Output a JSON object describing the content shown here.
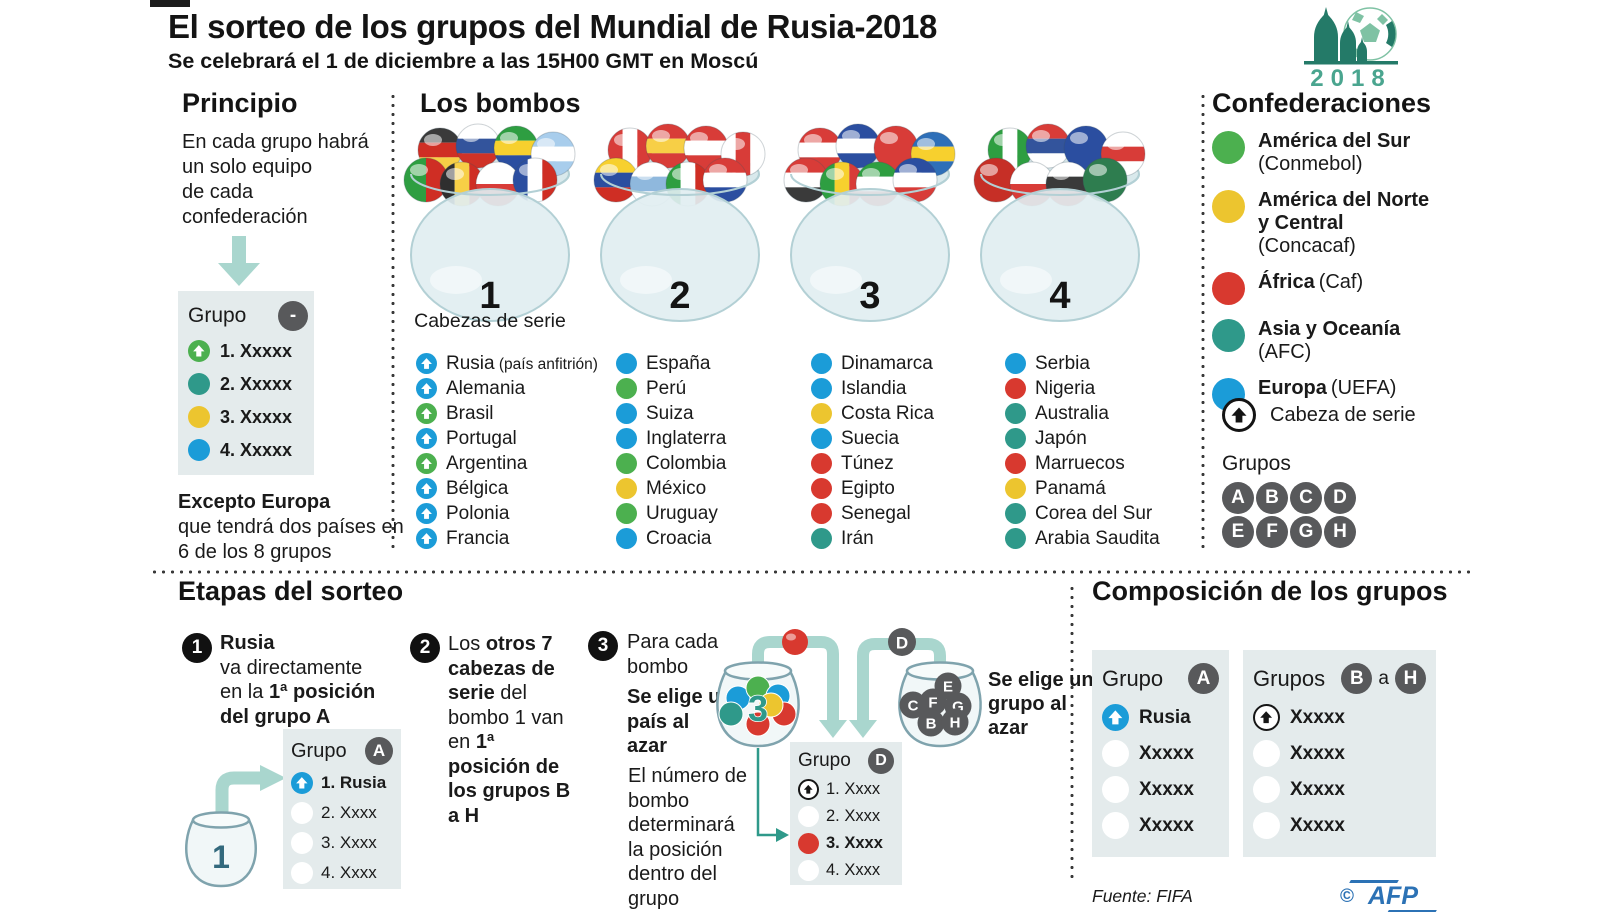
{
  "colors": {
    "uefa": "#1b9cd8",
    "conmebol": "#4cb04f",
    "concacaf": "#ecc52f",
    "caf": "#d8392f",
    "afc": "#2f998a",
    "white": "#ffffff",
    "dark": "#58595b",
    "arrow": "#a9d6ce",
    "box": "#e4ebec",
    "logo": "#247a68",
    "logo_light": "#7fc2a4",
    "logo_text": "#4aa58f",
    "afp": "#2c72b5"
  },
  "header": {
    "title": "El sorteo de los grupos del Mundial de Rusia-2018",
    "subtitle": "Se celebrará el 1 de diciembre a las 15H00 GMT en Moscú",
    "logo_year": "2018"
  },
  "principio": {
    "heading": "Principio",
    "body_lines": [
      "En cada grupo habrá",
      "un solo equipo",
      "de cada",
      "confederación"
    ],
    "box": {
      "label": "Grupo",
      "badge": "-",
      "items": [
        {
          "text": "1. Xxxxx",
          "bullet": "conmebol",
          "arrow": true,
          "bold": true
        },
        {
          "text": "2. Xxxxx",
          "bullet": "afc",
          "bold": true
        },
        {
          "text": "3. Xxxxx",
          "bullet": "concacaf",
          "bold": true
        },
        {
          "text": "4. Xxxxx",
          "bullet": "uefa",
          "bold": true
        }
      ]
    },
    "note_bold": "Excepto Europa",
    "note": "que tendrá dos países en 6 de los 8 grupos"
  },
  "bombos": {
    "heading": "Los bombos",
    "pots": [
      {
        "number": "1",
        "caption": "Cabezas de serie",
        "teams": [
          {
            "name": "Rusia",
            "suffix": " (país anfitrión)",
            "conf": "uefa",
            "seed": true
          },
          {
            "name": "Alemania",
            "conf": "uefa",
            "seed": true
          },
          {
            "name": "Brasil",
            "conf": "conmebol",
            "seed": true
          },
          {
            "name": "Portugal",
            "conf": "uefa",
            "seed": true
          },
          {
            "name": "Argentina",
            "conf": "conmebol",
            "seed": true
          },
          {
            "name": "Bélgica",
            "conf": "uefa",
            "seed": true
          },
          {
            "name": "Polonia",
            "conf": "uefa",
            "seed": true
          },
          {
            "name": "Francia",
            "conf": "uefa",
            "seed": true
          }
        ],
        "balls": [
          {
            "s": [
              "#3a3a3a",
              "#cf2e24",
              "#f7cf46"
            ]
          },
          {
            "s": [
              "#ffffff",
              "#33549c",
              "#cf3227"
            ]
          },
          {
            "s": [
              "#2e9e41",
              "#f7d02e",
              "#2b4ea0"
            ]
          },
          {
            "s": [
              "#a8cdec",
              "#ffffff",
              "#a8cdec"
            ]
          },
          {
            "s": [
              "#2e9e41",
              "#cf2e24"
            ],
            "v": true
          },
          {
            "s": [
              "#2f2f2f",
              "#f7cf46",
              "#cf2e24"
            ],
            "v": true
          },
          {
            "s": [
              "#ffffff",
              "#d83c38"
            ]
          },
          {
            "s": [
              "#2b4ea0",
              "#ffffff",
              "#cf2e24"
            ],
            "v": true
          }
        ]
      },
      {
        "number": "2",
        "teams": [
          {
            "name": "España",
            "conf": "uefa"
          },
          {
            "name": "Perú",
            "conf": "conmebol"
          },
          {
            "name": "Suiza",
            "conf": "uefa"
          },
          {
            "name": "Inglaterra",
            "conf": "uefa"
          },
          {
            "name": "Colombia",
            "conf": "conmebol"
          },
          {
            "name": "México",
            "conf": "concacaf"
          },
          {
            "name": "Uruguay",
            "conf": "conmebol"
          },
          {
            "name": "Croacia",
            "conf": "uefa"
          }
        ],
        "balls": [
          {
            "s": [
              "#d83c38",
              "#ffffff",
              "#d83c38"
            ],
            "v": true
          },
          {
            "s": [
              "#d83c38",
              "#f7cf46",
              "#d83c38"
            ]
          },
          {
            "s": [
              "#d83c38",
              "#ffffff",
              "#d83c38"
            ]
          },
          {
            "s": [
              "#ffffff",
              "#d83c38",
              "#ffffff"
            ],
            "v": true
          },
          {
            "s": [
              "#f7d02e",
              "#2b4ea0",
              "#cf2e24"
            ]
          },
          {
            "s": [
              "#ffffff",
              "#8fb8dd",
              "#ffffff"
            ]
          },
          {
            "s": [
              "#2e9e41",
              "#ffffff",
              "#cf2e24"
            ],
            "v": true
          },
          {
            "s": [
              "#d83c38",
              "#ffffff",
              "#2b4ea0"
            ]
          }
        ]
      },
      {
        "number": "3",
        "teams": [
          {
            "name": "Dinamarca",
            "conf": "uefa"
          },
          {
            "name": "Islandia",
            "conf": "uefa"
          },
          {
            "name": "Costa Rica",
            "conf": "concacaf"
          },
          {
            "name": "Suecia",
            "conf": "uefa"
          },
          {
            "name": "Túnez",
            "conf": "caf"
          },
          {
            "name": "Egipto",
            "conf": "caf"
          },
          {
            "name": "Senegal",
            "conf": "caf"
          },
          {
            "name": "Irán",
            "conf": "afc"
          }
        ],
        "balls": [
          {
            "s": [
              "#d83c38",
              "#ffffff",
              "#d83c38"
            ]
          },
          {
            "s": [
              "#2b4ea0",
              "#ffffff",
              "#2b4ea0"
            ]
          },
          {
            "s": [
              "#d83c38"
            ]
          },
          {
            "s": [
              "#2e6fb8",
              "#f7d02e",
              "#2e6fb8"
            ]
          },
          {
            "s": [
              "#d83c38",
              "#ffffff",
              "#3a3a3a"
            ]
          },
          {
            "s": [
              "#2e9e41",
              "#f7d02e",
              "#d83c38"
            ],
            "v": true
          },
          {
            "s": [
              "#2e9e41",
              "#ffffff",
              "#d83c38"
            ]
          },
          {
            "s": [
              "#2b4ea0",
              "#ffffff",
              "#d83c38"
            ]
          }
        ]
      },
      {
        "number": "4",
        "teams": [
          {
            "name": "Serbia",
            "conf": "uefa"
          },
          {
            "name": "Nigeria",
            "conf": "caf"
          },
          {
            "name": "Australia",
            "conf": "afc"
          },
          {
            "name": "Japón",
            "conf": "afc"
          },
          {
            "name": "Marruecos",
            "conf": "caf"
          },
          {
            "name": "Panamá",
            "conf": "concacaf"
          },
          {
            "name": "Corea del Sur",
            "conf": "afc"
          },
          {
            "name": "Arabia Saudita",
            "conf": "afc"
          }
        ],
        "balls": [
          {
            "s": [
              "#2e9e41",
              "#ffffff",
              "#2e9e41"
            ],
            "v": true
          },
          {
            "s": [
              "#d83c38",
              "#33549c",
              "#ffffff"
            ]
          },
          {
            "s": [
              "#2b4ea0"
            ]
          },
          {
            "s": [
              "#ffffff",
              "#d83c38",
              "#ffffff"
            ]
          },
          {
            "s": [
              "#c62f26"
            ]
          },
          {
            "s": [
              "#ffffff",
              "#d83c38"
            ]
          },
          {
            "s": [
              "#ffffff",
              "#3a3a3a",
              "#d83c38"
            ]
          },
          {
            "s": [
              "#2e7d4f"
            ]
          }
        ]
      }
    ]
  },
  "confederaciones": {
    "heading": "Confederaciones",
    "entries": [
      {
        "name": "América del Sur",
        "sub": "(Conmebol)",
        "conf": "conmebol"
      },
      {
        "name": "América del Norte y Central",
        "sub": "(Concacaf)",
        "conf": "concacaf"
      },
      {
        "name": "África",
        "sub": "(Caf)",
        "conf": "caf",
        "inline": true
      },
      {
        "name": "Asia y Oceanía",
        "sub": "(AFC)",
        "conf": "afc"
      },
      {
        "name": "Europa",
        "sub": "(UEFA)",
        "conf": "uefa",
        "inline": true
      }
    ],
    "seed_label": "Cabeza de serie",
    "groups_label": "Grupos",
    "group_letters": [
      "A",
      "B",
      "C",
      "D",
      "E",
      "F",
      "G",
      "H"
    ]
  },
  "etapas": {
    "heading": "Etapas del sorteo",
    "step1": {
      "num": "1",
      "bold1": "Rusia",
      "line2": "va directamente",
      "line3_pre": "en la ",
      "line3_bold": "1ª posición",
      "line4_bold": "del grupo A",
      "pot_label": "1",
      "grupo_a": {
        "label": "Grupo",
        "badge": "A",
        "rows": [
          {
            "text": "1. Rusia",
            "bullet": "uefa",
            "arrow": true,
            "bold": true
          },
          {
            "text": "2. Xxxx",
            "bullet": "white"
          },
          {
            "text": "3. Xxxx",
            "bullet": "white"
          },
          {
            "text": "4. Xxxx",
            "bullet": "white"
          }
        ]
      }
    },
    "step2": {
      "num": "2",
      "pre": "Los ",
      "bold1": "otros 7 cabezas de serie",
      "mid": " del bombo 1 van en ",
      "bold2": "1ª posición de los grupos B a H"
    },
    "step3": {
      "num": "3",
      "line1": "Para cada bombo",
      "bold_note": "Se elige un país al azar",
      "para": "El número de bombo determinará la posición dentro del grupo",
      "pot_number": "3",
      "pot_balls": [
        "uefa",
        "conmebol",
        "uefa",
        "afc",
        "caf",
        "caf",
        "concacaf"
      ],
      "drawn_ball_color": "caf",
      "group_letters_in_pot": [
        "E",
        "C",
        "F",
        "G",
        "B",
        "H"
      ],
      "drawn_group": "D",
      "right_note": "Se elige un grupo al azar",
      "grupo_d": {
        "label": "Grupo",
        "badge": "D",
        "rows": [
          {
            "text": "1. Xxxx",
            "bullet": "white",
            "outline": true,
            "arrow": true
          },
          {
            "text": "2. Xxxx",
            "bullet": "white"
          },
          {
            "text": "3. Xxxx",
            "bullet": "caf",
            "bold": true
          },
          {
            "text": "4. Xxxx",
            "bullet": "white"
          }
        ]
      }
    }
  },
  "composicion": {
    "heading": "Composición de los grupos",
    "box_a": {
      "label": "Grupo",
      "badge": "A",
      "rows": [
        {
          "text": "Rusia",
          "bullet": "uefa",
          "arrow": true,
          "bold": true
        },
        {
          "text": "Xxxxx",
          "bullet": "white",
          "bold": true
        },
        {
          "text": "Xxxxx",
          "bullet": "white",
          "bold": true
        },
        {
          "text": "Xxxxx",
          "bullet": "white",
          "bold": true
        }
      ]
    },
    "box_bh": {
      "label": "Grupos",
      "badge_from": "B",
      "conj": "a",
      "badge_to": "H",
      "rows": [
        {
          "text": "Xxxxx",
          "bullet": "white",
          "outline": true,
          "arrow": true,
          "bold": true
        },
        {
          "text": "Xxxxx",
          "bullet": "white",
          "bold": true
        },
        {
          "text": "Xxxxx",
          "bullet": "white",
          "bold": true
        },
        {
          "text": "Xxxxx",
          "bullet": "white",
          "bold": true
        }
      ]
    }
  },
  "footer": {
    "source": "Fuente: FIFA",
    "copyright": "©",
    "brand": "AFP"
  }
}
